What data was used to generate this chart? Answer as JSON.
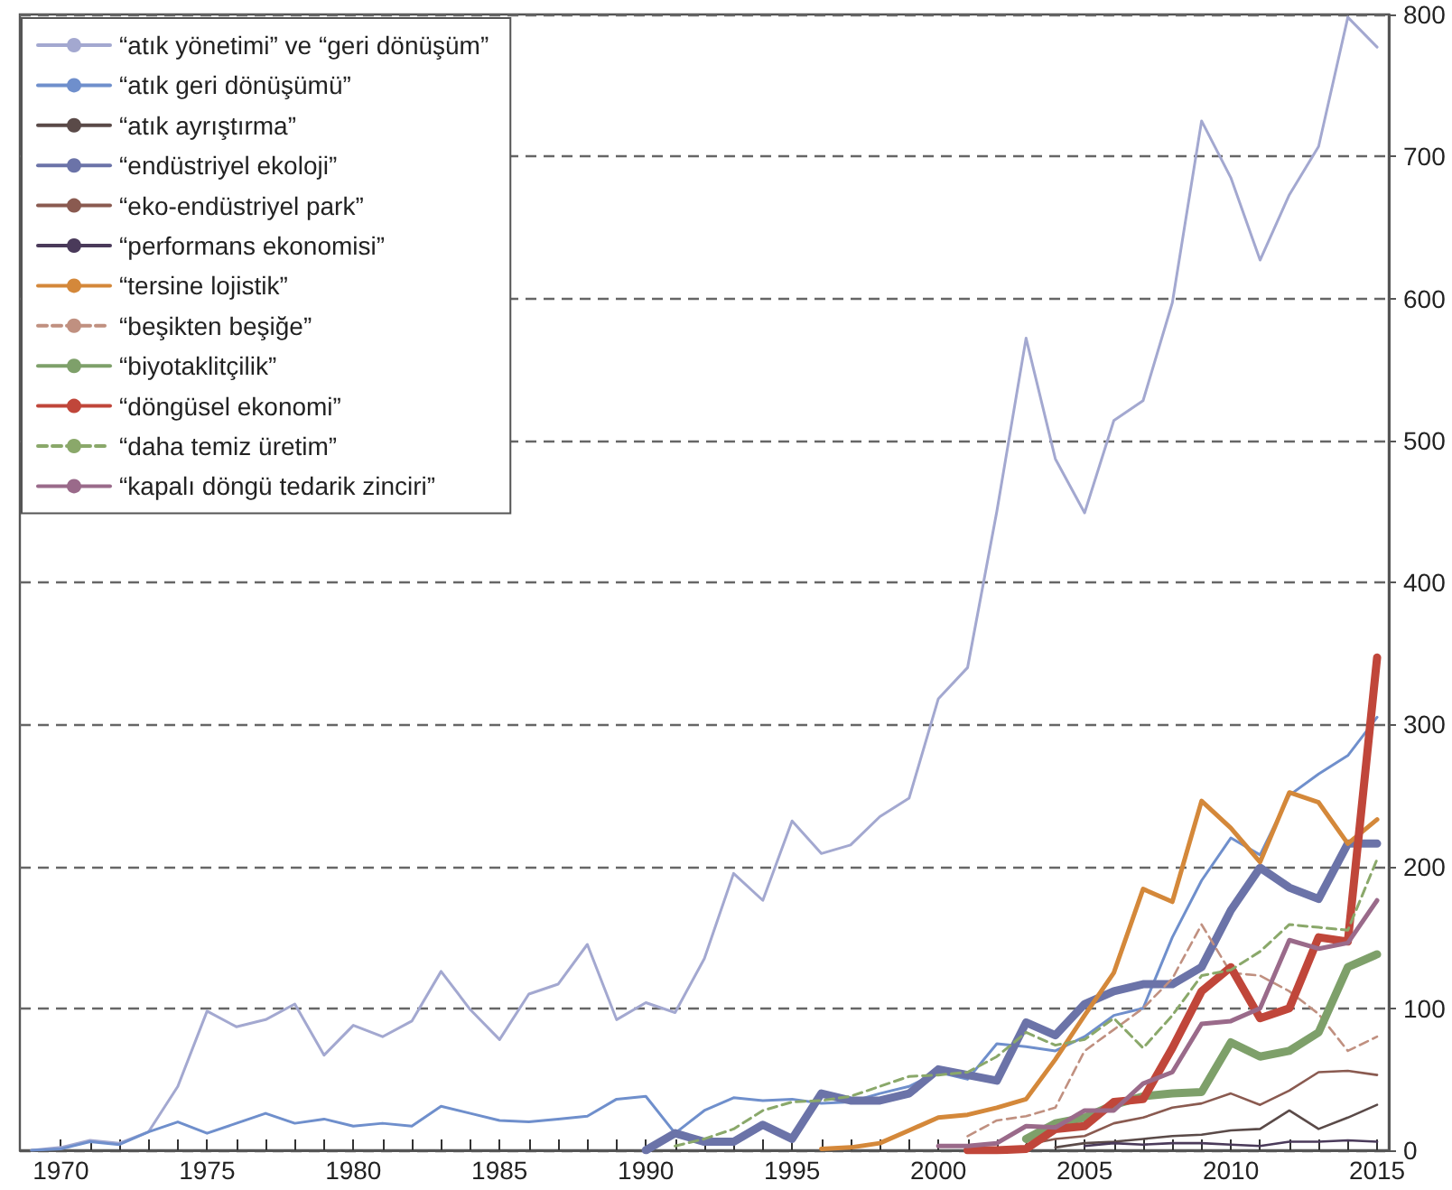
{
  "chart_data": {
    "type": "line",
    "marker": "none",
    "line_style": "solid",
    "grid": "y",
    "legend": "top left",
    "x": [
      1969,
      1970,
      1971,
      1972,
      1973,
      1974,
      1975,
      1976,
      1977,
      1978,
      1979,
      1980,
      1981,
      1982,
      1983,
      1984,
      1985,
      1986,
      1987,
      1988,
      1989,
      1990,
      1991,
      1992,
      1993,
      1994,
      1995,
      1996,
      1997,
      1998,
      1999,
      2000,
      2001,
      2002,
      2003,
      2004,
      2005,
      2006,
      2007,
      2008,
      2009,
      2010,
      2011,
      2012,
      2013,
      2014,
      2015
    ],
    "xlim": [
      1968.6,
      2015.4
    ],
    "xticks": [
      1970,
      {
        "value": 1971,
        "label": null
      },
      {
        "value": 1972,
        "label": null
      },
      {
        "value": 1973,
        "label": null
      },
      {
        "value": 1974,
        "label": null
      },
      1975,
      {
        "value": 1976,
        "label": null
      },
      {
        "value": 1977,
        "label": null
      },
      {
        "value": 1978,
        "label": null
      },
      {
        "value": 1979,
        "label": null
      },
      1980,
      {
        "value": 1981,
        "label": null
      },
      {
        "value": 1982,
        "label": null
      },
      {
        "value": 1983,
        "label": null
      },
      {
        "value": 1984,
        "label": null
      },
      1985,
      {
        "value": 1986,
        "label": null
      },
      {
        "value": 1987,
        "label": null
      },
      {
        "value": 1988,
        "label": null
      },
      {
        "value": 1989,
        "label": null
      },
      1990,
      {
        "value": 1991,
        "label": null
      },
      {
        "value": 1992,
        "label": null
      },
      {
        "value": 1993,
        "label": null
      },
      {
        "value": 1994,
        "label": null
      },
      1995,
      {
        "value": 1996,
        "label": null
      },
      {
        "value": 1997,
        "label": null
      },
      {
        "value": 1998,
        "label": null
      },
      {
        "value": 1999,
        "label": null
      },
      2000,
      {
        "value": 2001,
        "label": null
      },
      {
        "value": 2002,
        "label": null
      },
      {
        "value": 2003,
        "label": null
      },
      {
        "value": 2004,
        "label": null
      },
      2005,
      {
        "value": 2006,
        "label": null
      },
      {
        "value": 2007,
        "label": null
      },
      {
        "value": 2008,
        "label": null
      },
      {
        "value": 2009,
        "label": null
      },
      2010,
      {
        "value": 2011,
        "label": null
      },
      {
        "value": 2012,
        "label": null
      },
      {
        "value": 2013,
        "label": null
      },
      {
        "value": 2014,
        "label": null
      },
      2015
    ],
    "ylim": [
      0,
      800
    ],
    "yticks": [
      0,
      100,
      200,
      300,
      400,
      500,
      600,
      700,
      800
    ],
    "series": [
      {
        "name": "“atık yönetimi” ve “geri dönüşüm”",
        "color": "#a3a8d0",
        "values": [
          0,
          2,
          7,
          5,
          13,
          45,
          98,
          87,
          92,
          103,
          67,
          88,
          80,
          91,
          126,
          99,
          78,
          110,
          117,
          145,
          92,
          104,
          97,
          135,
          195,
          176,
          232,
          209,
          215,
          235,
          248,
          318,
          340,
          450,
          572,
          487,
          449,
          514,
          528,
          597,
          725,
          685,
          627,
          673,
          707,
          798,
          777
        ]
      },
      {
        "name": "“atık geri dönüşümü”",
        "color": "#6f8fcc",
        "values": [
          0,
          1,
          6,
          4,
          13,
          20,
          12,
          19,
          26,
          19,
          22,
          17,
          19,
          17,
          31,
          26,
          21,
          20,
          22,
          24,
          36,
          38,
          12,
          28,
          37,
          35,
          36,
          33,
          34,
          40,
          45,
          55,
          50,
          75,
          73,
          70,
          80,
          95,
          100,
          150,
          190,
          220,
          208,
          250,
          265,
          278,
          305
        ]
      },
      {
        "name": "“atık ayrıştırma”",
        "color": "#5a4a48",
        "values": [
          null,
          null,
          null,
          null,
          null,
          null,
          null,
          null,
          null,
          null,
          null,
          null,
          null,
          null,
          null,
          null,
          null,
          null,
          null,
          null,
          null,
          null,
          null,
          null,
          null,
          null,
          null,
          null,
          null,
          null,
          null,
          null,
          null,
          null,
          null,
          2,
          5,
          6,
          8,
          10,
          11,
          14,
          15,
          28,
          15,
          23,
          32
        ]
      },
      {
        "name": "“endüstriyel ekoloji”",
        "color": "#6b73a8",
        "values": [
          null,
          null,
          null,
          null,
          null,
          null,
          null,
          null,
          null,
          null,
          null,
          null,
          null,
          null,
          null,
          null,
          null,
          null,
          null,
          null,
          null,
          0,
          12,
          6,
          6,
          18,
          8,
          40,
          35,
          35,
          40,
          57,
          53,
          49,
          90,
          81,
          103,
          112,
          117,
          117,
          129,
          169,
          199,
          185,
          177,
          216,
          216
        ]
      },
      {
        "name": "“eko-endüstriyel park”",
        "color": "#8a5a50",
        "values": [
          null,
          null,
          null,
          null,
          null,
          null,
          null,
          null,
          null,
          null,
          null,
          null,
          null,
          null,
          null,
          null,
          null,
          null,
          null,
          null,
          null,
          null,
          null,
          null,
          null,
          null,
          null,
          null,
          null,
          null,
          null,
          null,
          null,
          null,
          4,
          8,
          10,
          19,
          23,
          30,
          33,
          40,
          32,
          42,
          55,
          56,
          53
        ]
      },
      {
        "name": "“performans ekonomisi”",
        "color": "#4a3a5a",
        "values": [
          null,
          null,
          null,
          null,
          null,
          null,
          null,
          null,
          null,
          null,
          null,
          null,
          null,
          null,
          null,
          null,
          null,
          null,
          null,
          null,
          null,
          null,
          null,
          null,
          null,
          null,
          null,
          null,
          null,
          null,
          null,
          null,
          null,
          null,
          null,
          null,
          3,
          5,
          4,
          5,
          5,
          4,
          3,
          6,
          6,
          7,
          6
        ]
      },
      {
        "name": "“tersine lojistik”",
        "color": "#d4883a",
        "values": [
          null,
          null,
          null,
          null,
          null,
          null,
          null,
          null,
          null,
          null,
          null,
          null,
          null,
          null,
          null,
          null,
          null,
          null,
          null,
          null,
          null,
          null,
          null,
          null,
          null,
          null,
          null,
          1,
          2,
          5,
          14,
          23,
          25,
          30,
          36,
          64,
          95,
          125,
          184,
          175,
          246,
          227,
          203,
          252,
          245,
          216,
          233
        ]
      },
      {
        "name": "“beşikten beşiğe”",
        "color": "#c09080",
        "line_style": "dashed",
        "values": [
          null,
          null,
          null,
          null,
          null,
          null,
          null,
          null,
          null,
          null,
          null,
          null,
          null,
          null,
          null,
          null,
          null,
          null,
          null,
          null,
          null,
          null,
          null,
          null,
          null,
          null,
          null,
          null,
          null,
          null,
          null,
          null,
          10,
          21,
          24,
          30,
          70,
          85,
          100,
          121,
          159,
          125,
          123,
          112,
          96,
          70,
          80
        ]
      },
      {
        "name": "“biyotaklitçilik”",
        "color": "#7ea06a",
        "values": [
          null,
          null,
          null,
          null,
          null,
          null,
          null,
          null,
          null,
          null,
          null,
          null,
          null,
          null,
          null,
          null,
          null,
          null,
          null,
          null,
          null,
          null,
          null,
          null,
          null,
          null,
          null,
          null,
          null,
          null,
          null,
          null,
          null,
          null,
          8,
          19,
          23,
          32,
          38,
          40,
          41,
          76,
          66,
          70,
          83,
          129,
          138
        ]
      },
      {
        "name": "“döngüsel ekonomi”",
        "color": "#c0463a",
        "values": [
          null,
          null,
          null,
          null,
          null,
          null,
          null,
          null,
          null,
          null,
          null,
          null,
          null,
          null,
          null,
          null,
          null,
          null,
          null,
          null,
          null,
          null,
          null,
          null,
          null,
          null,
          null,
          null,
          null,
          null,
          null,
          null,
          0,
          0,
          1,
          15,
          17,
          34,
          36,
          72,
          112,
          129,
          93,
          100,
          150,
          147,
          347
        ]
      },
      {
        "name": "“daha temiz üretim”",
        "color": "#8aa86a",
        "line_style": "dashed",
        "values": [
          null,
          null,
          null,
          null,
          null,
          null,
          null,
          null,
          null,
          null,
          null,
          null,
          null,
          null,
          null,
          null,
          null,
          null,
          null,
          null,
          null,
          null,
          3,
          8,
          15,
          28,
          34,
          35,
          38,
          45,
          52,
          53,
          55,
          66,
          83,
          74,
          78,
          93,
          72,
          95,
          123,
          127,
          140,
          159,
          157,
          155,
          205
        ]
      },
      {
        "name": "“kapalı döngü tedarik zinciri”",
        "color": "#9a6a8a",
        "values": [
          null,
          null,
          null,
          null,
          null,
          null,
          null,
          null,
          null,
          null,
          null,
          null,
          null,
          null,
          null,
          null,
          null,
          null,
          null,
          null,
          null,
          null,
          null,
          null,
          null,
          null,
          null,
          null,
          null,
          null,
          null,
          3,
          3,
          5,
          17,
          16,
          28,
          28,
          47,
          55,
          89,
          91,
          100,
          148,
          142,
          146,
          176
        ]
      }
    ]
  }
}
